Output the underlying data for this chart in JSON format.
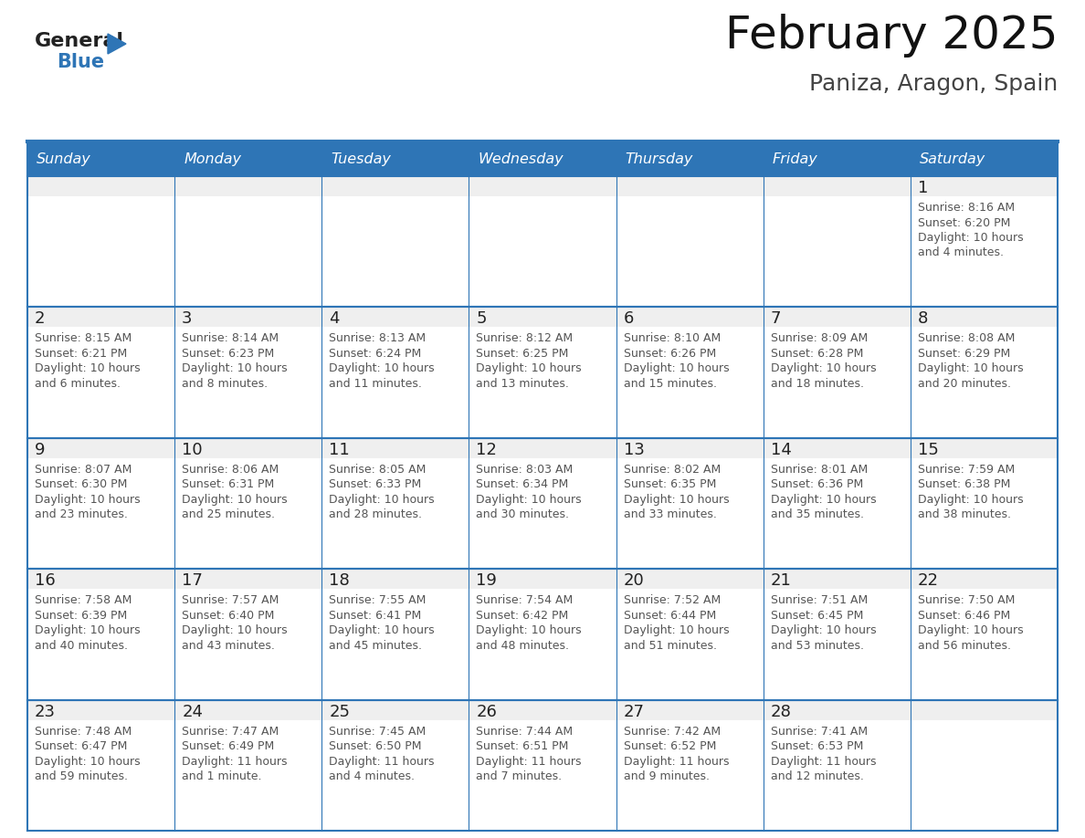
{
  "title": "February 2025",
  "subtitle": "Paniza, Aragon, Spain",
  "header_bg": "#2E75B6",
  "header_text_color": "#FFFFFF",
  "cell_bg_white": "#FFFFFF",
  "cell_top_bg": "#F2F2F2",
  "cell_border_color": "#2E75B6",
  "day_number_color": "#333333",
  "detail_text_color": "#555555",
  "days_of_week": [
    "Sunday",
    "Monday",
    "Tuesday",
    "Wednesday",
    "Thursday",
    "Friday",
    "Saturday"
  ],
  "weeks": [
    [
      {
        "day": "",
        "lines": []
      },
      {
        "day": "",
        "lines": []
      },
      {
        "day": "",
        "lines": []
      },
      {
        "day": "",
        "lines": []
      },
      {
        "day": "",
        "lines": []
      },
      {
        "day": "",
        "lines": []
      },
      {
        "day": "1",
        "lines": [
          "Sunrise: 8:16 AM",
          "Sunset: 6:20 PM",
          "Daylight: 10 hours",
          "and 4 minutes."
        ]
      }
    ],
    [
      {
        "day": "2",
        "lines": [
          "Sunrise: 8:15 AM",
          "Sunset: 6:21 PM",
          "Daylight: 10 hours",
          "and 6 minutes."
        ]
      },
      {
        "day": "3",
        "lines": [
          "Sunrise: 8:14 AM",
          "Sunset: 6:23 PM",
          "Daylight: 10 hours",
          "and 8 minutes."
        ]
      },
      {
        "day": "4",
        "lines": [
          "Sunrise: 8:13 AM",
          "Sunset: 6:24 PM",
          "Daylight: 10 hours",
          "and 11 minutes."
        ]
      },
      {
        "day": "5",
        "lines": [
          "Sunrise: 8:12 AM",
          "Sunset: 6:25 PM",
          "Daylight: 10 hours",
          "and 13 minutes."
        ]
      },
      {
        "day": "6",
        "lines": [
          "Sunrise: 8:10 AM",
          "Sunset: 6:26 PM",
          "Daylight: 10 hours",
          "and 15 minutes."
        ]
      },
      {
        "day": "7",
        "lines": [
          "Sunrise: 8:09 AM",
          "Sunset: 6:28 PM",
          "Daylight: 10 hours",
          "and 18 minutes."
        ]
      },
      {
        "day": "8",
        "lines": [
          "Sunrise: 8:08 AM",
          "Sunset: 6:29 PM",
          "Daylight: 10 hours",
          "and 20 minutes."
        ]
      }
    ],
    [
      {
        "day": "9",
        "lines": [
          "Sunrise: 8:07 AM",
          "Sunset: 6:30 PM",
          "Daylight: 10 hours",
          "and 23 minutes."
        ]
      },
      {
        "day": "10",
        "lines": [
          "Sunrise: 8:06 AM",
          "Sunset: 6:31 PM",
          "Daylight: 10 hours",
          "and 25 minutes."
        ]
      },
      {
        "day": "11",
        "lines": [
          "Sunrise: 8:05 AM",
          "Sunset: 6:33 PM",
          "Daylight: 10 hours",
          "and 28 minutes."
        ]
      },
      {
        "day": "12",
        "lines": [
          "Sunrise: 8:03 AM",
          "Sunset: 6:34 PM",
          "Daylight: 10 hours",
          "and 30 minutes."
        ]
      },
      {
        "day": "13",
        "lines": [
          "Sunrise: 8:02 AM",
          "Sunset: 6:35 PM",
          "Daylight: 10 hours",
          "and 33 minutes."
        ]
      },
      {
        "day": "14",
        "lines": [
          "Sunrise: 8:01 AM",
          "Sunset: 6:36 PM",
          "Daylight: 10 hours",
          "and 35 minutes."
        ]
      },
      {
        "day": "15",
        "lines": [
          "Sunrise: 7:59 AM",
          "Sunset: 6:38 PM",
          "Daylight: 10 hours",
          "and 38 minutes."
        ]
      }
    ],
    [
      {
        "day": "16",
        "lines": [
          "Sunrise: 7:58 AM",
          "Sunset: 6:39 PM",
          "Daylight: 10 hours",
          "and 40 minutes."
        ]
      },
      {
        "day": "17",
        "lines": [
          "Sunrise: 7:57 AM",
          "Sunset: 6:40 PM",
          "Daylight: 10 hours",
          "and 43 minutes."
        ]
      },
      {
        "day": "18",
        "lines": [
          "Sunrise: 7:55 AM",
          "Sunset: 6:41 PM",
          "Daylight: 10 hours",
          "and 45 minutes."
        ]
      },
      {
        "day": "19",
        "lines": [
          "Sunrise: 7:54 AM",
          "Sunset: 6:42 PM",
          "Daylight: 10 hours",
          "and 48 minutes."
        ]
      },
      {
        "day": "20",
        "lines": [
          "Sunrise: 7:52 AM",
          "Sunset: 6:44 PM",
          "Daylight: 10 hours",
          "and 51 minutes."
        ]
      },
      {
        "day": "21",
        "lines": [
          "Sunrise: 7:51 AM",
          "Sunset: 6:45 PM",
          "Daylight: 10 hours",
          "and 53 minutes."
        ]
      },
      {
        "day": "22",
        "lines": [
          "Sunrise: 7:50 AM",
          "Sunset: 6:46 PM",
          "Daylight: 10 hours",
          "and 56 minutes."
        ]
      }
    ],
    [
      {
        "day": "23",
        "lines": [
          "Sunrise: 7:48 AM",
          "Sunset: 6:47 PM",
          "Daylight: 10 hours",
          "and 59 minutes."
        ]
      },
      {
        "day": "24",
        "lines": [
          "Sunrise: 7:47 AM",
          "Sunset: 6:49 PM",
          "Daylight: 11 hours",
          "and 1 minute."
        ]
      },
      {
        "day": "25",
        "lines": [
          "Sunrise: 7:45 AM",
          "Sunset: 6:50 PM",
          "Daylight: 11 hours",
          "and 4 minutes."
        ]
      },
      {
        "day": "26",
        "lines": [
          "Sunrise: 7:44 AM",
          "Sunset: 6:51 PM",
          "Daylight: 11 hours",
          "and 7 minutes."
        ]
      },
      {
        "day": "27",
        "lines": [
          "Sunrise: 7:42 AM",
          "Sunset: 6:52 PM",
          "Daylight: 11 hours",
          "and 9 minutes."
        ]
      },
      {
        "day": "28",
        "lines": [
          "Sunrise: 7:41 AM",
          "Sunset: 6:53 PM",
          "Daylight: 11 hours",
          "and 12 minutes."
        ]
      },
      {
        "day": "",
        "lines": []
      }
    ]
  ]
}
